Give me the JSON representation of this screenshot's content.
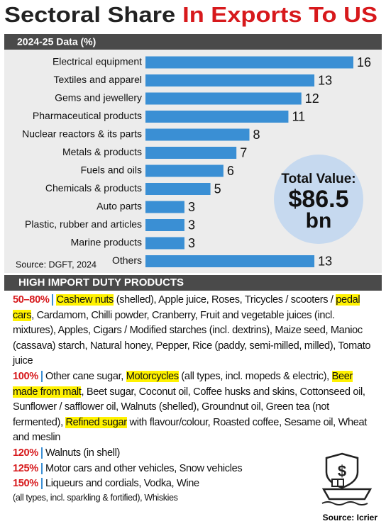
{
  "chart_data": {
    "type": "bar",
    "orientation": "horizontal",
    "title": "Sectoral Share",
    "title_highlight": "In Exports To US",
    "subtitle": "2024-25 Data (%)",
    "categories": [
      "Electrical equipment",
      "Textiles and apparel",
      "Gems and jewellery",
      "Pharmaceutical products",
      "Nuclear reactors & its parts",
      "Metals & products",
      "Fuels and oils",
      "Chemicals & products",
      "Auto parts",
      "Plastic, rubber and articles",
      "Marine products",
      "Others"
    ],
    "values": [
      16,
      13,
      12,
      11,
      8,
      7,
      6,
      5,
      3,
      3,
      3,
      13
    ],
    "color": "#3a8fd4",
    "annotation": {
      "label": "Total Value:",
      "value": "$86.5",
      "unit": "bn"
    },
    "source": "Source: DGFT, 2024"
  },
  "duty_products": {
    "title": "HIGH IMPORT DUTY PRODUCTS",
    "groups": [
      {
        "rate": "50–80%",
        "segments": [
          {
            "text": "Cashew nuts",
            "highlight": true
          },
          {
            "text": " (shelled),  Apple juice, Roses, Tricycles / scooters / ",
            "highlight": false
          },
          {
            "text": "pedal cars",
            "highlight": true
          },
          {
            "text": ", Cardamom, Chilli powder, Cranberry, Fruit and vegetable juices (incl. mixtures), Apples, Cigars /  Modified starches (incl. dextrins), Maize seed, Manioc (cassava) starch, Natural honey, Pepper, Rice (paddy, semi-milled, milled), Tomato juice",
            "highlight": false
          }
        ]
      },
      {
        "rate": "100%",
        "segments": [
          {
            "text": "Other cane sugar, ",
            "highlight": false
          },
          {
            "text": "Motorcycles",
            "highlight": true
          },
          {
            "text": " (all types, incl. mopeds & electric), ",
            "highlight": false
          },
          {
            "text": "Beer made from malt",
            "highlight": true
          },
          {
            "text": ", Beet sugar, Coconut oil, Coffee husks and skins, Cottonseed oil, Sunflower / safflower oil,  Walnuts (shelled), Groundnut oil, Green tea (not fermented), ",
            "highlight": false
          },
          {
            "text": "Refined sugar",
            "highlight": true
          },
          {
            "text": " with flavour/colour, Roasted coffee, Sesame oil, Wheat and meslin",
            "highlight": false
          }
        ]
      },
      {
        "rate": "120%",
        "segments": [
          {
            "text": "Walnuts (in shell)",
            "highlight": false
          }
        ]
      },
      {
        "rate": "125%",
        "segments": [
          {
            "text": "Motor cars and other vehicles, Snow vehicles",
            "highlight": false
          }
        ]
      },
      {
        "rate": "150%",
        "segments": [
          {
            "text": "Liqueurs and cordials, Vodka, Wine",
            "highlight": false
          }
        ],
        "note": "(all types, incl. sparkling & fortified), Whiskies"
      }
    ],
    "source": "Source: Icrier"
  }
}
